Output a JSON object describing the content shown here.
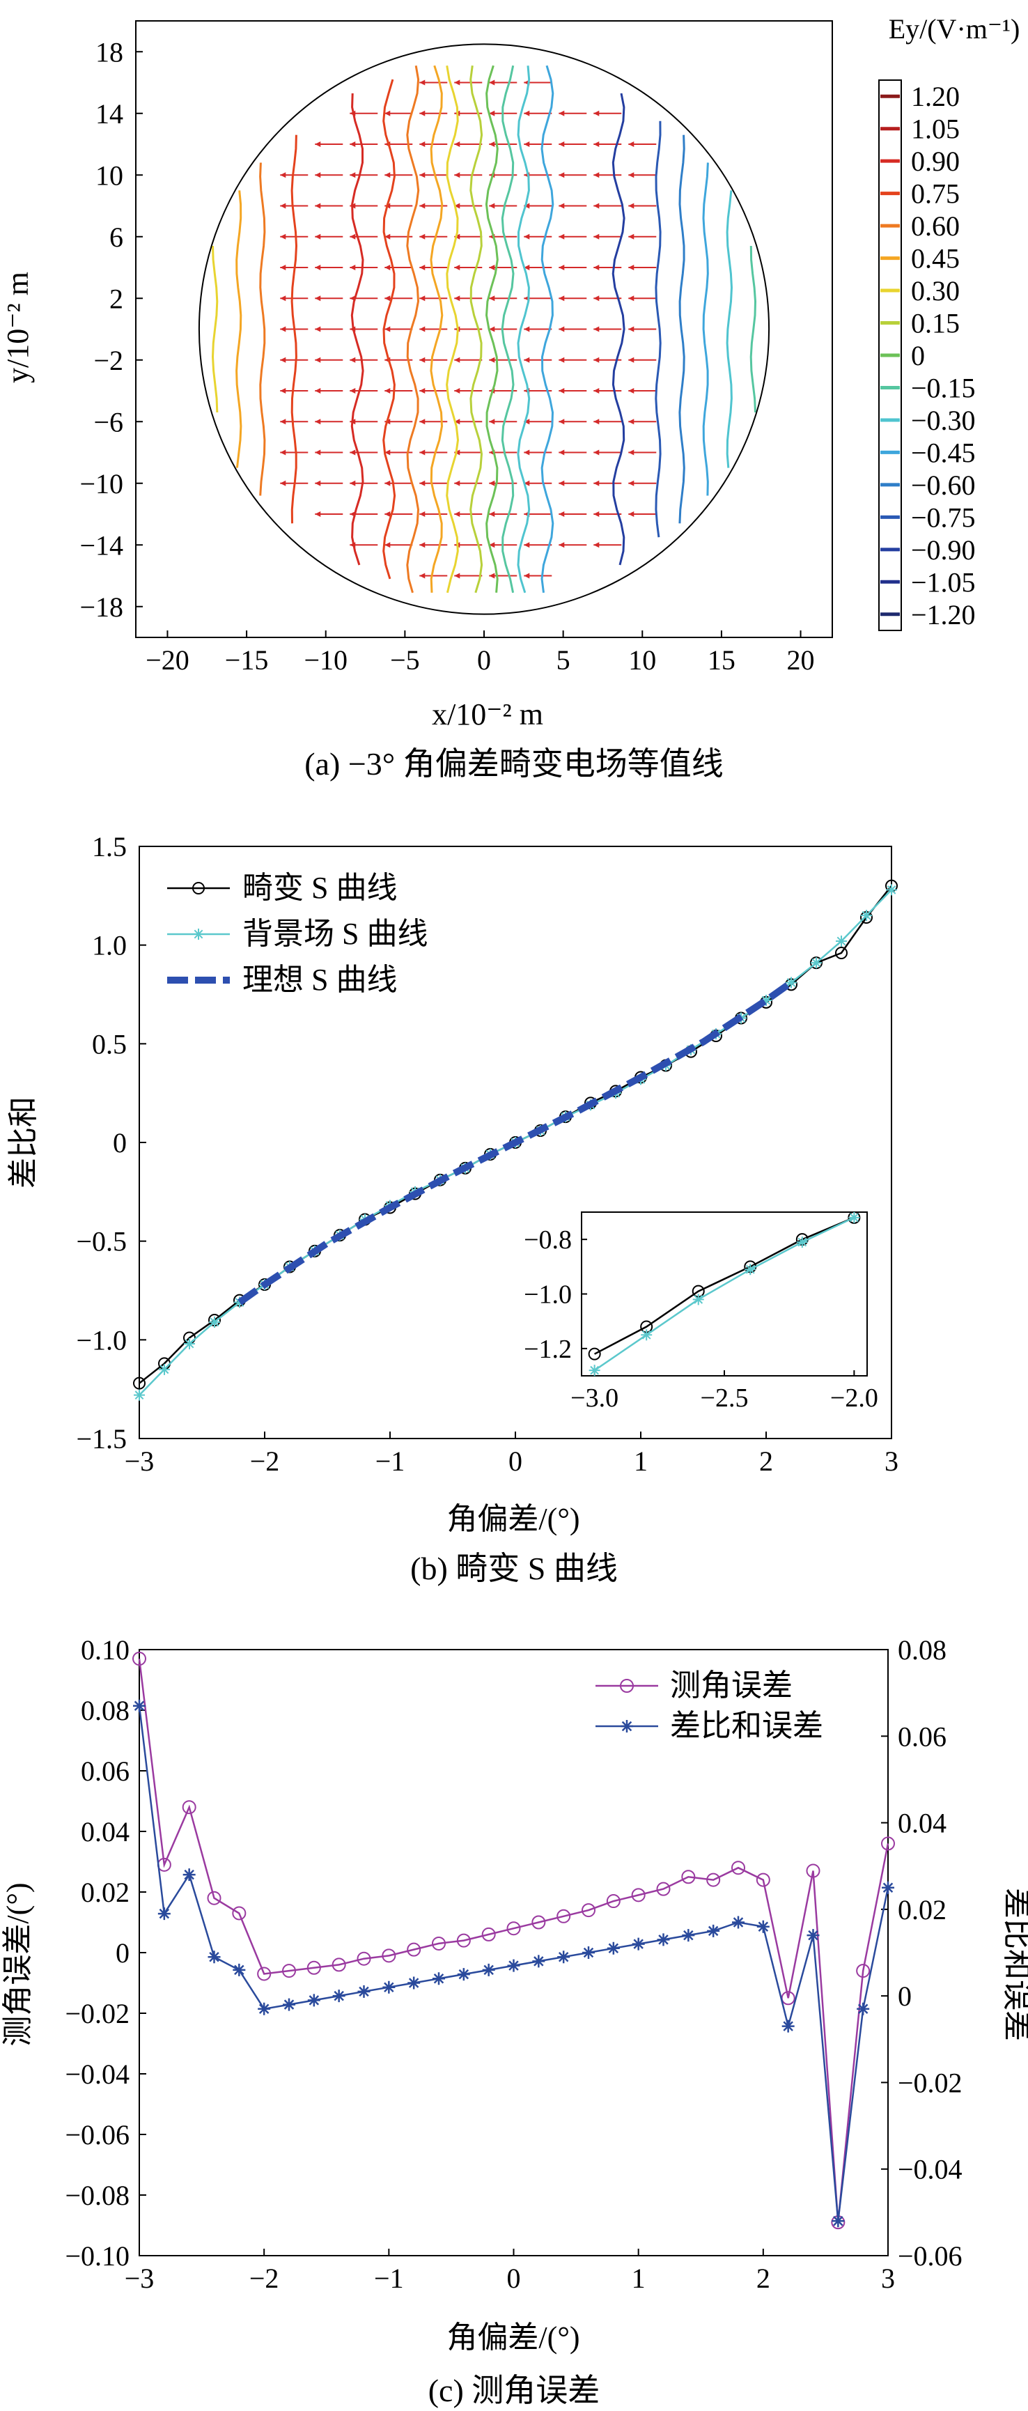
{
  "figures": {
    "a": {
      "caption": "(a) −3° 角偏差畸变电场等值线",
      "x_label": "x/10⁻² m",
      "y_label": "y/10⁻² m",
      "colorbar_label": "Ey/(V·m⁻¹)"
    },
    "b": {
      "caption": "(b) 畸变 S 曲线",
      "x_label": "角偏差/(°)",
      "y_label": "差比和"
    },
    "c": {
      "caption": "(c) 测角误差",
      "x_label": "角偏差/(°)",
      "y_label_left": "测角误差/(°)",
      "y_label_right": "差比和误差"
    }
  },
  "chart_data": [
    {
      "type": "heatmap",
      "title": "",
      "xlabel": "x/10⁻² m",
      "ylabel": "y/10⁻² m",
      "xlim": [
        -22,
        22
      ],
      "ylim": [
        -20,
        20
      ],
      "x_ticks": [
        -20,
        -15,
        -10,
        -5,
        0,
        5,
        10,
        15,
        20
      ],
      "y_ticks": [
        18,
        14,
        10,
        6,
        2,
        -2,
        -6,
        -10,
        -14,
        -18
      ],
      "aperture_radius": 18,
      "contour_x_positions": [
        -17,
        -15.5,
        -14,
        -12,
        -8,
        -6,
        -4.5,
        -3,
        -2,
        -0.5,
        0.5,
        1.5,
        2.5,
        4,
        8.5,
        11,
        12.5,
        14,
        15.5,
        17
      ],
      "contour_levels": [
        0.3,
        0.45,
        0.6,
        0.75,
        0.9,
        0.75,
        0.6,
        0.45,
        0.3,
        0.15,
        0,
        -0.15,
        -0.3,
        -0.45,
        -0.9,
        -0.75,
        -0.6,
        -0.45,
        -0.3,
        -0.15
      ],
      "vector_field": "arrows point in -x direction",
      "colorbar": {
        "label": "Ey/(V·m⁻¹)",
        "ticks": [
          "1.20",
          "1.05",
          "0.90",
          "0.75",
          "0.60",
          "0.45",
          "0.30",
          "0.15",
          "0",
          "−0.15",
          "−0.30",
          "−0.45",
          "−0.60",
          "−0.75",
          "−0.90",
          "−1.05",
          "−1.20"
        ],
        "colors": [
          "#8b1a1a",
          "#b51e1e",
          "#d62b24",
          "#e4421d",
          "#ee7a22",
          "#f4a623",
          "#e8d430",
          "#b8d03a",
          "#6cc158",
          "#55c6a0",
          "#4fc4cf",
          "#3ea6dc",
          "#2f7ec8",
          "#2a59b4",
          "#243ea0",
          "#21308c",
          "#1e2a6e"
        ]
      }
    },
    {
      "type": "line",
      "title": "",
      "xlabel": "角偏差/(°)",
      "ylabel": "差比和",
      "xlim": [
        -3,
        3
      ],
      "ylim": [
        -1.5,
        1.5
      ],
      "x_ticks": [
        -3,
        -2,
        -1,
        0,
        1,
        2,
        3
      ],
      "y_ticks": [
        -1.5,
        -1.0,
        -0.5,
        0,
        0.5,
        1.0,
        1.5
      ],
      "x": [
        -3.0,
        -2.8,
        -2.6,
        -2.4,
        -2.2,
        -2.0,
        -1.8,
        -1.6,
        -1.4,
        -1.2,
        -1.0,
        -0.8,
        -0.6,
        -0.4,
        -0.2,
        0.0,
        0.2,
        0.4,
        0.6,
        0.8,
        1.0,
        1.2,
        1.4,
        1.6,
        1.8,
        2.0,
        2.2,
        2.4,
        2.6,
        2.8,
        3.0
      ],
      "series": [
        {
          "name": "畸变 S 曲线",
          "color": "#000000",
          "marker": "circle",
          "values": [
            -1.22,
            -1.12,
            -0.99,
            -0.9,
            -0.8,
            -0.72,
            -0.63,
            -0.55,
            -0.47,
            -0.39,
            -0.33,
            -0.26,
            -0.19,
            -0.13,
            -0.06,
            0.0,
            0.06,
            0.13,
            0.2,
            0.26,
            0.33,
            0.39,
            0.46,
            0.54,
            0.63,
            0.71,
            0.8,
            0.91,
            0.96,
            1.14,
            1.3
          ]
        },
        {
          "name": "背景场 S 曲线",
          "color": "#5bc8cc",
          "marker": "star",
          "values": [
            -1.28,
            -1.15,
            -1.02,
            -0.91,
            -0.81,
            -0.72,
            -0.63,
            -0.55,
            -0.47,
            -0.39,
            -0.32,
            -0.25,
            -0.19,
            -0.13,
            -0.06,
            0.0,
            0.06,
            0.13,
            0.19,
            0.25,
            0.32,
            0.39,
            0.47,
            0.55,
            0.63,
            0.72,
            0.81,
            0.91,
            1.02,
            1.15,
            1.28
          ]
        },
        {
          "name": "理想 S 曲线",
          "color": "#2d4fb0",
          "marker": "none",
          "style": "dashed",
          "x": [
            -2.2,
            -2.0,
            -1.5,
            -1.0,
            -0.5,
            0.0,
            0.5,
            1.0,
            1.5,
            2.0,
            2.2
          ],
          "values": [
            -0.81,
            -0.72,
            -0.51,
            -0.33,
            -0.16,
            0.0,
            0.16,
            0.33,
            0.51,
            0.72,
            0.81
          ]
        }
      ],
      "legend": "top-left",
      "inset": {
        "xlim": [
          -3.05,
          -1.95
        ],
        "ylim": [
          -1.3,
          -0.7
        ],
        "x_ticks": [
          "−3.0",
          "−2.5",
          "−2.0"
        ],
        "y_ticks": [
          "−0.8",
          "−1.0",
          "−1.2"
        ],
        "x": [
          -3.0,
          -2.8,
          -2.6,
          -2.4,
          -2.2,
          -2.0
        ],
        "series": [
          {
            "name": "畸变 S 曲线",
            "values": [
              -1.22,
              -1.12,
              -0.99,
              -0.9,
              -0.8,
              -0.72
            ]
          },
          {
            "name": "背景场 S 曲线",
            "values": [
              -1.28,
              -1.15,
              -1.02,
              -0.91,
              -0.81,
              -0.72
            ]
          }
        ]
      }
    },
    {
      "type": "line",
      "title": "",
      "xlabel": "角偏差/(°)",
      "ylabel": "测角误差/(°)",
      "y2label": "差比和误差",
      "xlim": [
        -3,
        3
      ],
      "ylim": [
        -0.1,
        0.1
      ],
      "y2lim": [
        -0.06,
        0.08
      ],
      "x_ticks": [
        -3,
        -2,
        -1,
        0,
        1,
        2,
        3
      ],
      "y_ticks": [
        "0.10",
        "0.08",
        "0.06",
        "0.04",
        "0.02",
        "0",
        "−0.02",
        "−0.04",
        "−0.06",
        "−0.08",
        "−0.10"
      ],
      "y2_ticks": [
        "0.08",
        "0.06",
        "0.04",
        "0.02",
        "0",
        "−0.02",
        "−0.04",
        "−0.06"
      ],
      "x": [
        -3.0,
        -2.8,
        -2.6,
        -2.4,
        -2.2,
        -2.0,
        -1.8,
        -1.6,
        -1.4,
        -1.2,
        -1.0,
        -0.8,
        -0.6,
        -0.4,
        -0.2,
        0.0,
        0.2,
        0.4,
        0.6,
        0.8,
        1.0,
        1.2,
        1.4,
        1.6,
        1.8,
        2.0,
        2.2,
        2.4,
        2.6,
        2.8,
        3.0
      ],
      "series": [
        {
          "name": "测角误差",
          "axis": "left",
          "color": "#9a3aa0",
          "marker": "circle",
          "values": [
            0.097,
            0.029,
            0.048,
            0.018,
            0.013,
            -0.007,
            -0.006,
            -0.005,
            -0.004,
            -0.002,
            -0.001,
            0.001,
            0.003,
            0.004,
            0.006,
            0.008,
            0.01,
            0.012,
            0.014,
            0.017,
            0.019,
            0.021,
            0.025,
            0.024,
            0.028,
            0.024,
            -0.015,
            0.027,
            -0.089,
            -0.006,
            0.036
          ]
        },
        {
          "name": "差比和误差",
          "axis": "right",
          "color": "#2a4a9c",
          "marker": "star",
          "values": [
            0.067,
            0.019,
            0.028,
            0.009,
            0.006,
            -0.003,
            -0.002,
            -0.001,
            0.0,
            0.001,
            0.002,
            0.003,
            0.004,
            0.005,
            0.006,
            0.007,
            0.008,
            0.009,
            0.01,
            0.011,
            0.012,
            0.013,
            0.014,
            0.015,
            0.017,
            0.016,
            -0.007,
            0.014,
            -0.052,
            -0.003,
            0.025
          ]
        }
      ],
      "legend": "top-right"
    }
  ]
}
